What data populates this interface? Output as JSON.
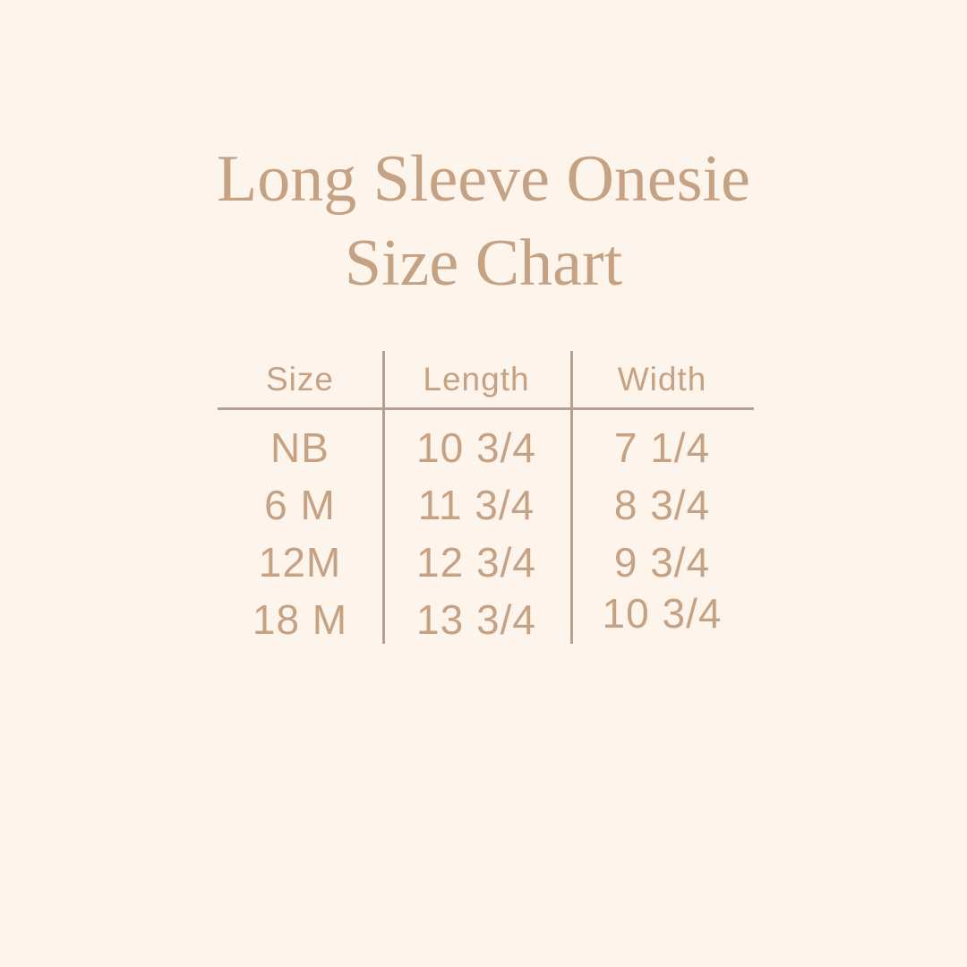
{
  "title": {
    "line1": "Long Sleeve Onesie",
    "line2": "Size Chart"
  },
  "table": {
    "headers": [
      "Size",
      "Length",
      "Width"
    ],
    "rows": [
      {
        "size": "NB",
        "length": "10 3/4",
        "width": "7 1/4"
      },
      {
        "size": "6 M",
        "length": "11 3/4",
        "width": "8 3/4"
      },
      {
        "size": "12M",
        "length": "12 3/4",
        "width": "9 3/4"
      },
      {
        "size": "18 M",
        "length": "13 3/4",
        "width": "10 3/4"
      }
    ]
  },
  "chart_data": {
    "type": "table",
    "title": "Long Sleeve Onesie Size Chart",
    "columns": [
      "Size",
      "Length",
      "Width"
    ],
    "rows": [
      [
        "NB",
        "10 3/4",
        "7 1/4"
      ],
      [
        "6 M",
        "11 3/4",
        "8 3/4"
      ],
      [
        "12M",
        "12 3/4",
        "9 3/4"
      ],
      [
        "18 M",
        "13 3/4",
        "10 3/4"
      ]
    ]
  },
  "colors": {
    "background": "#FDF4EB",
    "title": "#C6A284",
    "table_text": "#C6A284",
    "line": "#B3A090"
  }
}
